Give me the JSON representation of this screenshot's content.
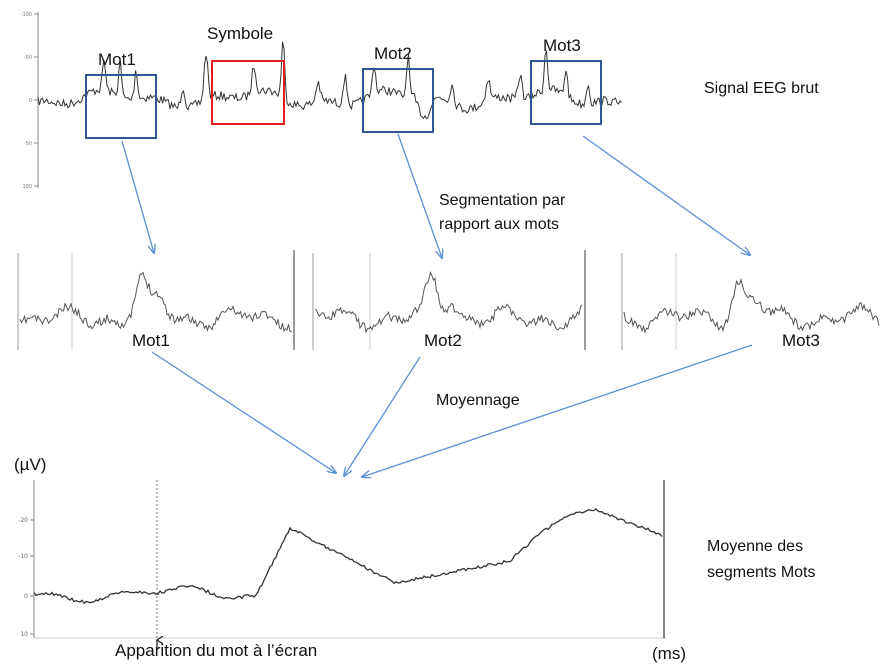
{
  "raw": {
    "boxes": [
      {
        "label": "Mot1",
        "color": "#2f5597"
      },
      {
        "label": "Symbole",
        "color": "#e02020"
      },
      {
        "label": "Mot2",
        "color": "#2f5597"
      },
      {
        "label": "Mot3",
        "color": "#2f5597"
      }
    ],
    "yticks": [
      "-100",
      "-50",
      "0",
      "50",
      "100"
    ],
    "title": "Signal EEG brut"
  },
  "segmentation": {
    "line1": "Segmentation par",
    "line2": "rapport aux mots"
  },
  "segments": [
    "Mot1",
    "Mot2",
    "Mot3"
  ],
  "averaging_label": "Moyennage",
  "average": {
    "yunit": "(µV)",
    "xunit": "(ms)",
    "yticks": [
      "-20",
      "-10",
      "0",
      "10"
    ],
    "title_line1": "Moyenne des",
    "title_line2": "segments Mots",
    "onset_label": "Apparition du mot à l’écran"
  },
  "colors": {
    "arrow": "#5b8fd6",
    "trace": "#333333",
    "box": "#2f5597",
    "symbol_box": "#e02020"
  }
}
